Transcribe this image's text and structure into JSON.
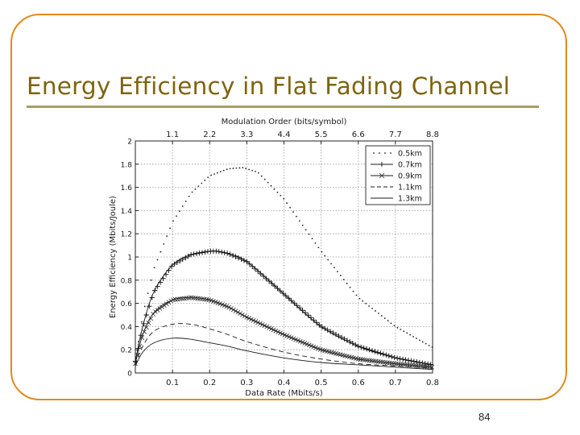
{
  "slide": {
    "title": "Energy Efficiency in Flat Fading Channel",
    "page_number": "84"
  },
  "chart_data": {
    "type": "line",
    "title": "",
    "xlabel": "Data Rate (Mbits/s)",
    "ylabel": "Energy Efficiency (Mbits/Joule)",
    "top_xlabel": "Modulation Order (bits/symbol)",
    "xlim": [
      0,
      0.8
    ],
    "ylim": [
      0,
      2
    ],
    "x_ticks": [
      0.1,
      0.2,
      0.3,
      0.4,
      0.5,
      0.6,
      0.7,
      0.8
    ],
    "x_tick_labels": [
      "0.1",
      "0.2",
      "0.3",
      "0.4",
      "0.5",
      "0.6",
      "0.7",
      "0.8"
    ],
    "y_ticks": [
      0,
      0.2,
      0.4,
      0.6,
      0.8,
      1,
      1.2,
      1.4,
      1.6,
      1.8,
      2
    ],
    "y_tick_labels": [
      "0",
      "0.2",
      "0.4",
      "0.6",
      "0.8",
      "1",
      "1.2",
      "1.4",
      "1.6",
      "1.8",
      "2"
    ],
    "top_ticks": [
      0.1,
      0.2,
      0.3,
      0.4,
      0.5,
      0.6,
      0.7,
      0.8
    ],
    "top_tick_labels": [
      "1.1",
      "2.2",
      "3.3",
      "4.4",
      "5.5",
      "6.6",
      "7.7",
      "8.8"
    ],
    "grid": true,
    "legend_position": "top-right",
    "series": [
      {
        "name": "0.5km",
        "style": "dotted",
        "marker": "dot",
        "x": [
          0,
          0.02,
          0.05,
          0.1,
          0.15,
          0.2,
          0.25,
          0.29,
          0.33,
          0.4,
          0.5,
          0.6,
          0.7,
          0.8
        ],
        "y": [
          0.1,
          0.5,
          0.9,
          1.3,
          1.55,
          1.7,
          1.76,
          1.77,
          1.73,
          1.5,
          1.05,
          0.65,
          0.4,
          0.22
        ]
      },
      {
        "name": "0.7km",
        "style": "solid",
        "marker": "plus",
        "x": [
          0,
          0.02,
          0.05,
          0.1,
          0.15,
          0.2,
          0.22,
          0.25,
          0.3,
          0.4,
          0.5,
          0.6,
          0.7,
          0.8
        ],
        "y": [
          0.1,
          0.4,
          0.7,
          0.93,
          1.02,
          1.05,
          1.05,
          1.03,
          0.96,
          0.68,
          0.4,
          0.23,
          0.13,
          0.07
        ]
      },
      {
        "name": "0.9km",
        "style": "solid",
        "marker": "x",
        "x": [
          0,
          0.02,
          0.05,
          0.1,
          0.15,
          0.2,
          0.25,
          0.3,
          0.4,
          0.5,
          0.6,
          0.7,
          0.8
        ],
        "y": [
          0.08,
          0.33,
          0.52,
          0.63,
          0.65,
          0.63,
          0.57,
          0.48,
          0.33,
          0.2,
          0.12,
          0.08,
          0.05
        ]
      },
      {
        "name": "1.1km",
        "style": "dashed",
        "marker": "none",
        "x": [
          0,
          0.02,
          0.05,
          0.1,
          0.15,
          0.2,
          0.25,
          0.3,
          0.4,
          0.5,
          0.6,
          0.7,
          0.8
        ],
        "y": [
          0.07,
          0.23,
          0.36,
          0.42,
          0.42,
          0.38,
          0.33,
          0.27,
          0.18,
          0.12,
          0.08,
          0.06,
          0.04
        ]
      },
      {
        "name": "1.3km",
        "style": "solid",
        "marker": "none",
        "x": [
          0,
          0.02,
          0.05,
          0.1,
          0.15,
          0.2,
          0.25,
          0.3,
          0.4,
          0.5,
          0.6,
          0.7,
          0.8
        ],
        "y": [
          0.06,
          0.18,
          0.26,
          0.3,
          0.29,
          0.26,
          0.23,
          0.19,
          0.13,
          0.09,
          0.07,
          0.05,
          0.03
        ]
      }
    ]
  },
  "colors": {
    "frame": "#e08a1e",
    "title": "#7d6410",
    "underline": "#a99d68"
  }
}
